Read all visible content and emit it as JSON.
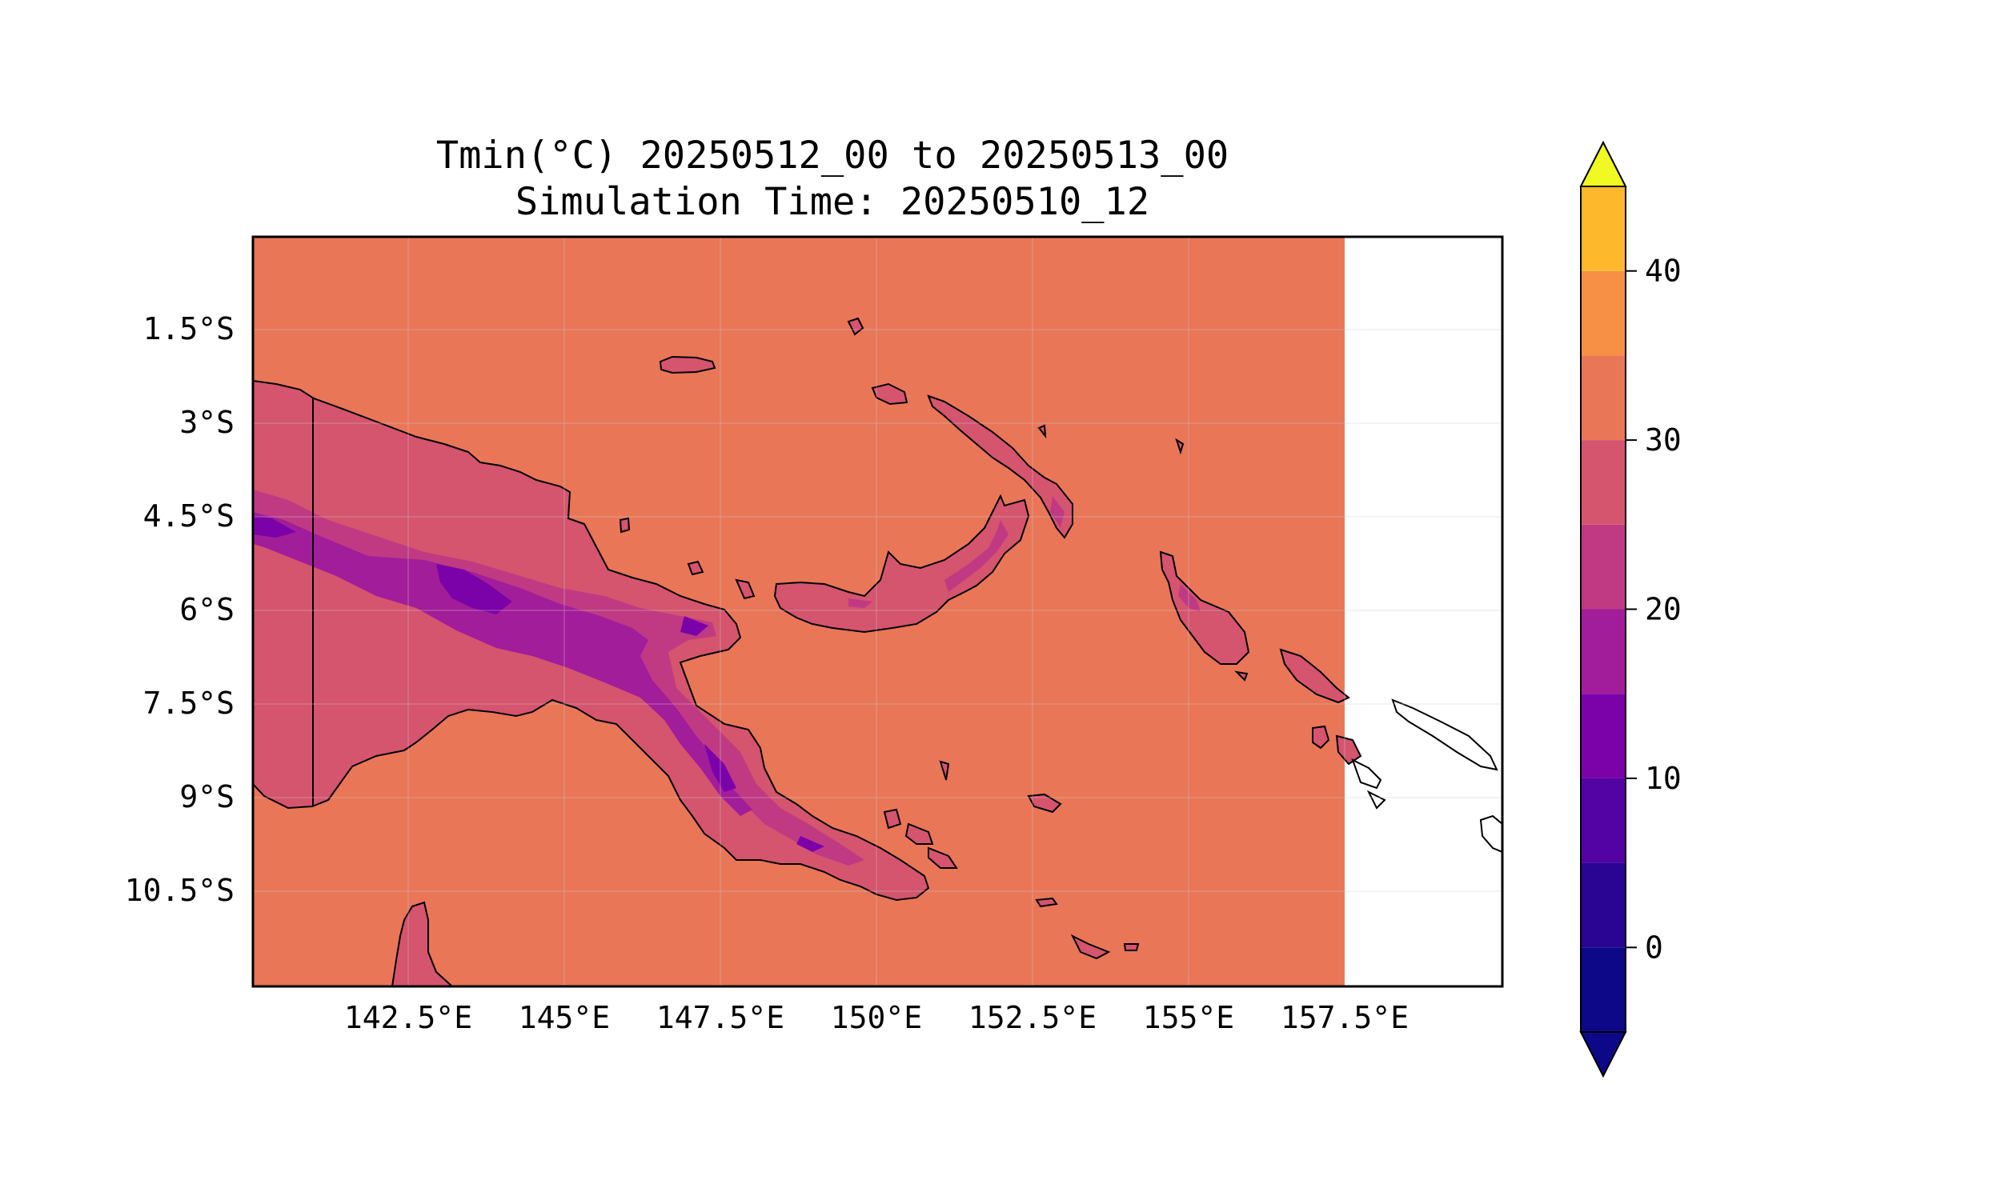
{
  "title": {
    "line1": "Tmin(°C) 20250512_00 to 20250513_00",
    "line2": "Simulation Time: 20250510_12"
  },
  "map": {
    "variable": "Tmin",
    "units": "°C",
    "region": "Papua New Guinea",
    "x_ticks": [
      "142.5°E",
      "145°E",
      "147.5°E",
      "150°E",
      "152.5°E",
      "155°E",
      "157.5°E"
    ],
    "y_ticks": [
      "1.5°S",
      "3°S",
      "4.5°S",
      "6°S",
      "7.5°S",
      "9°S",
      "10.5°S"
    ],
    "grid": true,
    "background_field_color": "#e97657",
    "no_data_color": "#ffffff"
  },
  "colorbar": {
    "tick_labels": [
      "0",
      "10",
      "20",
      "30",
      "40"
    ],
    "levels": [
      -5,
      0,
      5,
      10,
      15,
      20,
      25,
      30,
      35,
      40,
      45
    ],
    "colors": [
      "#0d0887",
      "#2a0593",
      "#5302a3",
      "#7b02a8",
      "#a21d9a",
      "#c03a83",
      "#d5546e",
      "#e97657",
      "#f79044",
      "#feb82c",
      "#f0f921"
    ],
    "extend": "both",
    "colormap": "plasma"
  }
}
